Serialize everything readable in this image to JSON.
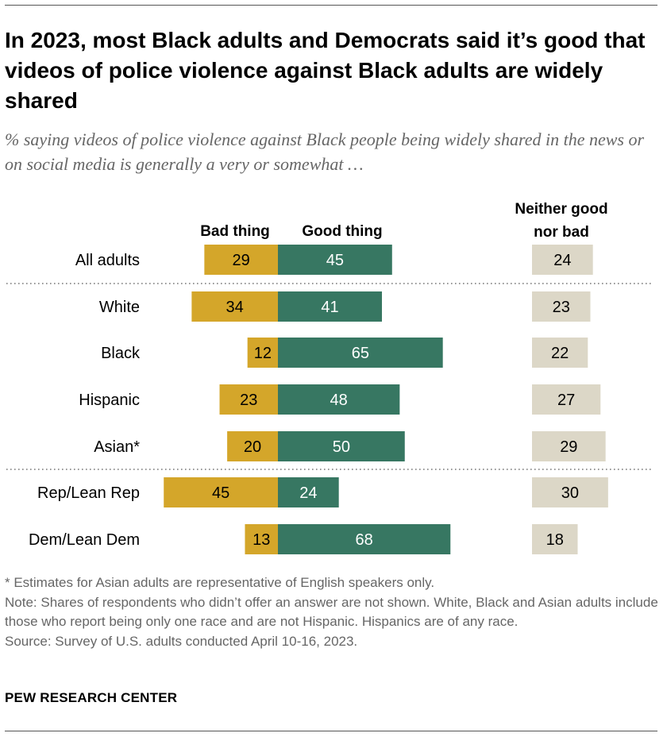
{
  "title": "In 2023, most Black adults and Democrats said it’s good that videos of police violence against Black adults are widely shared",
  "subtitle": "% saying videos of police violence against Black people being widely shared in the news or on social media is generally a very or somewhat …",
  "chart_data": {
    "type": "bar",
    "orientation": "diverging-horizontal",
    "categories": [
      "All adults",
      "White",
      "Black",
      "Hispanic",
      "Asian*",
      "Rep/Lean Rep",
      "Dem/Lean Dem"
    ],
    "groups": [
      [
        0
      ],
      [
        1,
        2,
        3,
        4
      ],
      [
        5,
        6
      ]
    ],
    "series": [
      {
        "name": "Bad thing",
        "color": "#d4a62a",
        "values": [
          29,
          34,
          12,
          23,
          20,
          45,
          13
        ]
      },
      {
        "name": "Good thing",
        "color": "#377762",
        "values": [
          45,
          41,
          65,
          48,
          50,
          24,
          68
        ]
      },
      {
        "name": "Neither good nor bad",
        "color": "#dcd7c7",
        "values": [
          24,
          23,
          22,
          27,
          29,
          30,
          18
        ]
      }
    ],
    "headers": {
      "bad": "Bad thing",
      "good": "Good thing",
      "neither_line1": "Neither good",
      "neither_line2": "nor bad"
    },
    "unit": "%"
  },
  "notes": {
    "asterisk": "* Estimates for Asian adults are representative of English speakers only.",
    "note": "Note: Shares of respondents who didn’t offer an answer are not shown. White, Black and Asian adults include those who report being only one race and are not Hispanic. Hispanics are of any race.",
    "source": "Source: Survey of U.S. adults conducted April 10-16, 2023."
  },
  "brand": "PEW RESEARCH CENTER"
}
